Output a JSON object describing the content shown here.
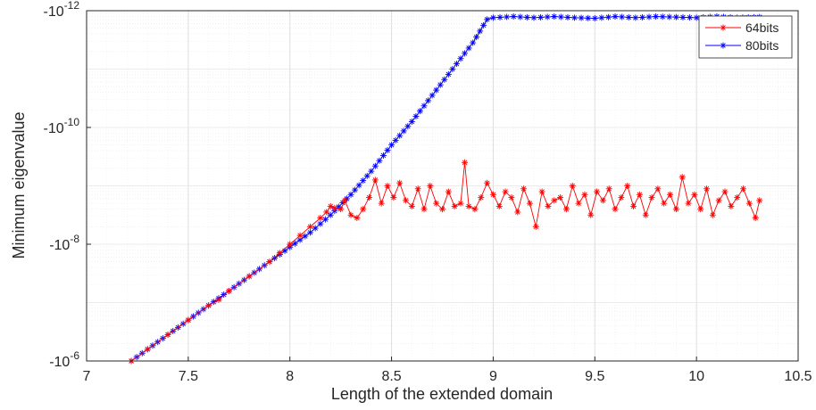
{
  "chart_data": {
    "type": "line",
    "title": "",
    "xlabel": "Length of the extended domain",
    "ylabel": "Minimum eigenvalue",
    "xlim": [
      7,
      10.5
    ],
    "ylim_log10_magnitude": [
      -6,
      -12
    ],
    "yscale": "log (negative values)",
    "xticks": [
      7,
      7.5,
      8,
      8.5,
      9,
      9.5,
      10,
      10.5
    ],
    "xtick_labels": [
      "7",
      "7.5",
      "8",
      "8.5",
      "9",
      "9.5",
      "10",
      "10.5"
    ],
    "yticks": [
      -6,
      -8,
      -10,
      -12
    ],
    "ytick_base": "-10",
    "ytick_exponents": [
      "-6",
      "-8",
      "-10",
      "-12"
    ],
    "grid": true,
    "minor_grid": true,
    "legend_position": "top-right",
    "series": [
      {
        "name": "64bits",
        "color": "#ff0000",
        "marker": "*",
        "x": [
          7.22,
          7.3,
          7.4,
          7.5,
          7.6,
          7.65,
          7.7,
          7.8,
          7.9,
          7.95,
          8.0,
          8.05,
          8.1,
          8.15,
          8.18,
          8.2,
          8.22,
          8.25,
          8.27,
          8.3,
          8.33,
          8.36,
          8.39,
          8.42,
          8.45,
          8.48,
          8.51,
          8.54,
          8.57,
          8.6,
          8.63,
          8.66,
          8.69,
          8.72,
          8.75,
          8.78,
          8.81,
          8.84,
          8.86,
          8.88,
          8.91,
          8.94,
          8.97,
          9.0,
          9.03,
          9.06,
          9.09,
          9.12,
          9.15,
          9.18,
          9.21,
          9.24,
          9.27,
          9.3,
          9.33,
          9.36,
          9.39,
          9.42,
          9.45,
          9.48,
          9.51,
          9.54,
          9.57,
          9.6,
          9.63,
          9.66,
          9.69,
          9.72,
          9.75,
          9.78,
          9.81,
          9.84,
          9.87,
          9.9,
          9.93,
          9.96,
          9.99,
          10.02,
          10.05,
          10.08,
          10.11,
          10.14,
          10.17,
          10.2,
          10.23,
          10.26,
          10.29,
          10.31
        ],
        "y_log10_magnitude": [
          -6.0,
          -6.2,
          -6.45,
          -6.7,
          -6.95,
          -7.05,
          -7.2,
          -7.45,
          -7.7,
          -7.85,
          -8.0,
          -8.15,
          -8.3,
          -8.45,
          -8.55,
          -8.65,
          -8.62,
          -8.6,
          -8.75,
          -8.5,
          -8.45,
          -8.6,
          -8.8,
          -9.1,
          -8.7,
          -9.0,
          -8.8,
          -9.05,
          -8.75,
          -8.65,
          -8.95,
          -8.6,
          -9.0,
          -8.7,
          -8.6,
          -8.9,
          -8.65,
          -8.7,
          -9.4,
          -8.65,
          -8.6,
          -8.8,
          -9.05,
          -8.85,
          -8.65,
          -8.9,
          -8.8,
          -8.55,
          -8.95,
          -8.7,
          -8.3,
          -8.9,
          -8.65,
          -8.75,
          -8.8,
          -8.6,
          -9.0,
          -8.7,
          -8.85,
          -8.5,
          -8.9,
          -8.75,
          -8.95,
          -8.6,
          -8.8,
          -9.0,
          -8.65,
          -8.85,
          -8.5,
          -8.8,
          -8.95,
          -8.7,
          -8.85,
          -8.6,
          -9.15,
          -8.7,
          -8.85,
          -8.6,
          -8.95,
          -8.5,
          -8.75,
          -8.9,
          -8.65,
          -8.8,
          -8.95,
          -8.7,
          -8.45,
          -8.75
        ]
      },
      {
        "name": "80bits",
        "color": "#0000ff",
        "marker": "*",
        "x": [
          7.22,
          7.3,
          7.4,
          7.5,
          7.6,
          7.7,
          7.8,
          7.9,
          8.0,
          8.1,
          8.2,
          8.3,
          8.4,
          8.5,
          8.6,
          8.7,
          8.8,
          8.9,
          8.97,
          9.0,
          9.1,
          9.2,
          9.3,
          9.4,
          9.5,
          9.6,
          9.7,
          9.8,
          9.9,
          10.0,
          10.1,
          10.2,
          10.31
        ],
        "y_log10_magnitude": [
          -6.0,
          -6.2,
          -6.45,
          -6.7,
          -6.95,
          -7.2,
          -7.45,
          -7.7,
          -7.95,
          -8.2,
          -8.5,
          -8.85,
          -9.25,
          -9.7,
          -10.1,
          -10.55,
          -11.0,
          -11.45,
          -11.85,
          -11.88,
          -11.9,
          -11.88,
          -11.9,
          -11.88,
          -11.87,
          -11.9,
          -11.88,
          -11.9,
          -11.89,
          -11.88,
          -11.9,
          -11.88,
          -11.89
        ]
      }
    ]
  }
}
